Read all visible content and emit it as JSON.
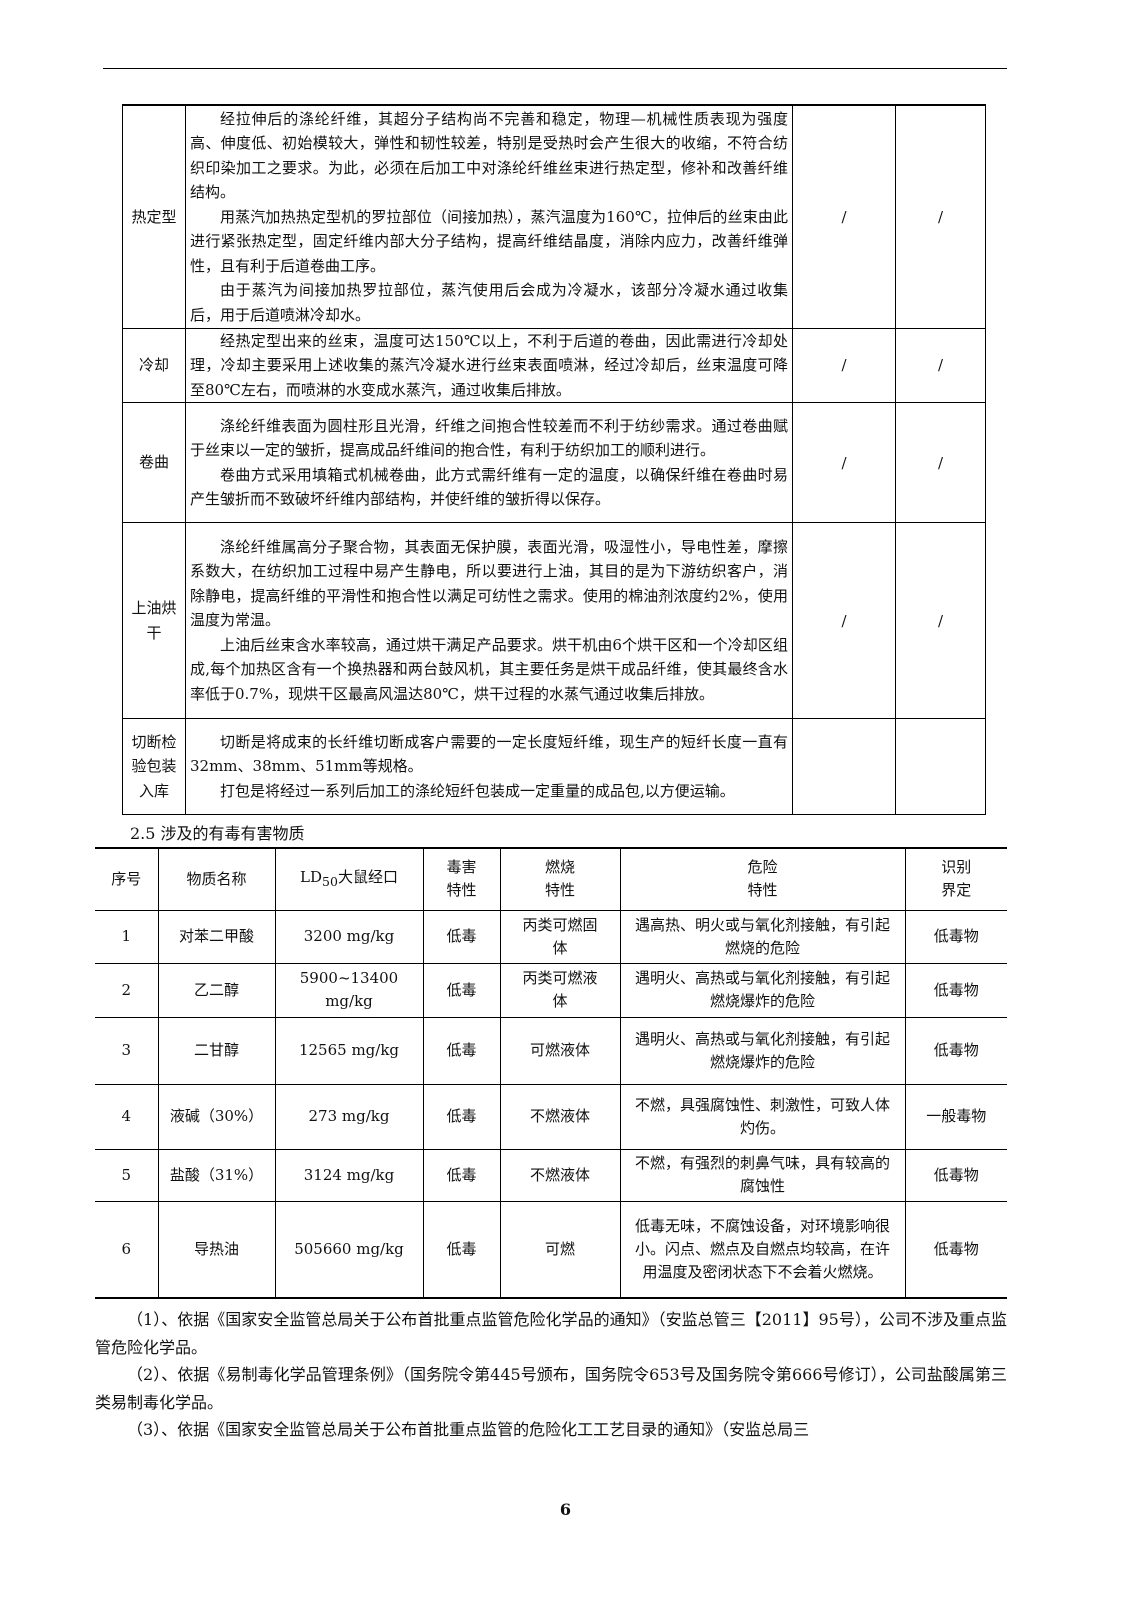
{
  "process_table": {
    "rows": [
      {
        "name": "热定型",
        "paras": [
          "经拉伸后的涤纶纤维，其超分子结构尚不完善和稳定，物理—机械性质表现为强度高、伸度低、初始模较大，弹性和韧性较差，特别是受热时会产生很大的收缩，不符合纺织印染加工之要求。为此，必须在后加工中对涤纶纤维丝束进行热定型，修补和改善纤维结构。",
          "用蒸汽加热热定型机的罗拉部位（间接加热），蒸汽温度为160℃，拉伸后的丝束由此进行紧张热定型，固定纤维内部大分子结构，提高纤维结晶度，消除内应力，改善纤维弹性，且有利于后道卷曲工序。",
          "由于蒸汽为间接加热罗拉部位，蒸汽使用后会成为冷凝水，该部分冷凝水通过收集后，用于后道喷淋冷却水。"
        ],
        "c3": "/",
        "c4": "/"
      },
      {
        "name": "冷却",
        "paras": [
          "经热定型出来的丝束，温度可达150℃以上，不利于后道的卷曲，因此需进行冷却处理，冷却主要采用上述收集的蒸汽冷凝水进行丝束表面喷淋，经过冷却后，丝束温度可降至80℃左右，而喷淋的水变成水蒸汽，通过收集后排放。"
        ],
        "c3": "/",
        "c4": "/"
      },
      {
        "name": "卷曲",
        "paras": [
          "涤纶纤维表面为圆柱形且光滑，纤维之间抱合性较差而不利于纺纱需求。通过卷曲赋于丝束以一定的皱折，提高成品纤维间的抱合性，有利于纺织加工的顺利进行。",
          "卷曲方式采用填箱式机械卷曲，此方式需纤维有一定的温度，以确保纤维在卷曲时易产生皱折而不致破坏纤维内部结构，并使纤维的皱折得以保存。"
        ],
        "c3": "/",
        "c4": "/"
      },
      {
        "name": "上油烘干",
        "paras": [
          "涤纶纤维属高分子聚合物，其表面无保护膜，表面光滑，吸湿性小，导电性差，摩擦系数大，在纺织加工过程中易产生静电，所以要进行上油，其目的是为下游纺织客户，消除静电，提高纤维的平滑性和抱合性以满足可纺性之需求。使用的棉油剂浓度约2%，使用温度为常温。",
          "上油后丝束含水率较高，通过烘干满足产品要求。烘干机由6个烘干区和一个冷却区组成,每个加热区含有一个换热器和两台鼓风机，其主要任务是烘干成品纤维，使其最终含水率低于0.7%，现烘干区最高风温达80℃，烘干过程的水蒸气通过收集后排放。"
        ],
        "c3": "/",
        "c4": "/"
      },
      {
        "name": "切断检验包装入库",
        "paras": [
          "切断是将成束的长纤维切断成客户需要的一定长度短纤维，现生产的短纤长度一直有32mm、38mm、51mm等规格。",
          "打包是将经过一系列后加工的涤纶短纤包装成一定重量的成品包,以方便运输。"
        ],
        "c3": "",
        "c4": ""
      }
    ]
  },
  "section_title": "2.5 涉及的有毒有害物质",
  "substance_table": {
    "headers": [
      "序号",
      "物质名称",
      "LD50大鼠经口",
      "毒害特性",
      "燃烧特性",
      "危险特性",
      "识别界定"
    ],
    "ld50_main": "LD",
    "ld50_sub": "50",
    "ld50_rest": "大鼠经口",
    "rows": [
      [
        "1",
        "对苯二甲酸",
        "3200 mg/kg",
        "低毒",
        "丙类可燃固体",
        "遇高热、明火或与氧化剂接触，有引起燃烧的危险",
        "低毒物"
      ],
      [
        "2",
        "乙二醇",
        "5900~13400 mg/kg",
        "低毒",
        "丙类可燃液体",
        "遇明火、高热或与氧化剂接触，有引起燃烧爆炸的危险",
        "低毒物"
      ],
      [
        "3",
        "二甘醇",
        "12565 mg/kg",
        "低毒",
        "可燃液体",
        "遇明火、高热或与氧化剂接触，有引起燃烧爆炸的危险",
        "低毒物"
      ],
      [
        "4",
        "液碱（30%）",
        "273 mg/kg",
        "低毒",
        "不燃液体",
        "不燃，具强腐蚀性、刺激性，可致人体灼伤。",
        "一般毒物"
      ],
      [
        "5",
        "盐酸（31%）",
        "3124 mg/kg",
        "低毒",
        "不燃液体",
        "不燃，有强烈的刺鼻气味，具有较高的腐蚀性",
        "低毒物"
      ],
      [
        "6",
        "导热油",
        "505660 mg/kg",
        "低毒",
        "可燃",
        "低毒无味，不腐蚀设备，对环境影响很小。闪点、燃点及自燃点均较高，在许用温度及密闭状态下不会着火燃烧。",
        "低毒物"
      ]
    ]
  },
  "paragraphs": [
    "（1）、依据《国家安全监管总局关于公布首批重点监管危险化学品的通知》（安监总管三【2011】95号），公司不涉及重点监管危险化学品。",
    "（2）、依据《易制毒化学品管理条例》（国务院令第445号颁布，国务院令653号及国务院令第666号修订），公司盐酸属第三类易制毒化学品。",
    "（3）、依据《国家安全监管总局关于公布首批重点监管的危险化工工艺目录的通知》（安监总局三"
  ],
  "page_number": "6"
}
